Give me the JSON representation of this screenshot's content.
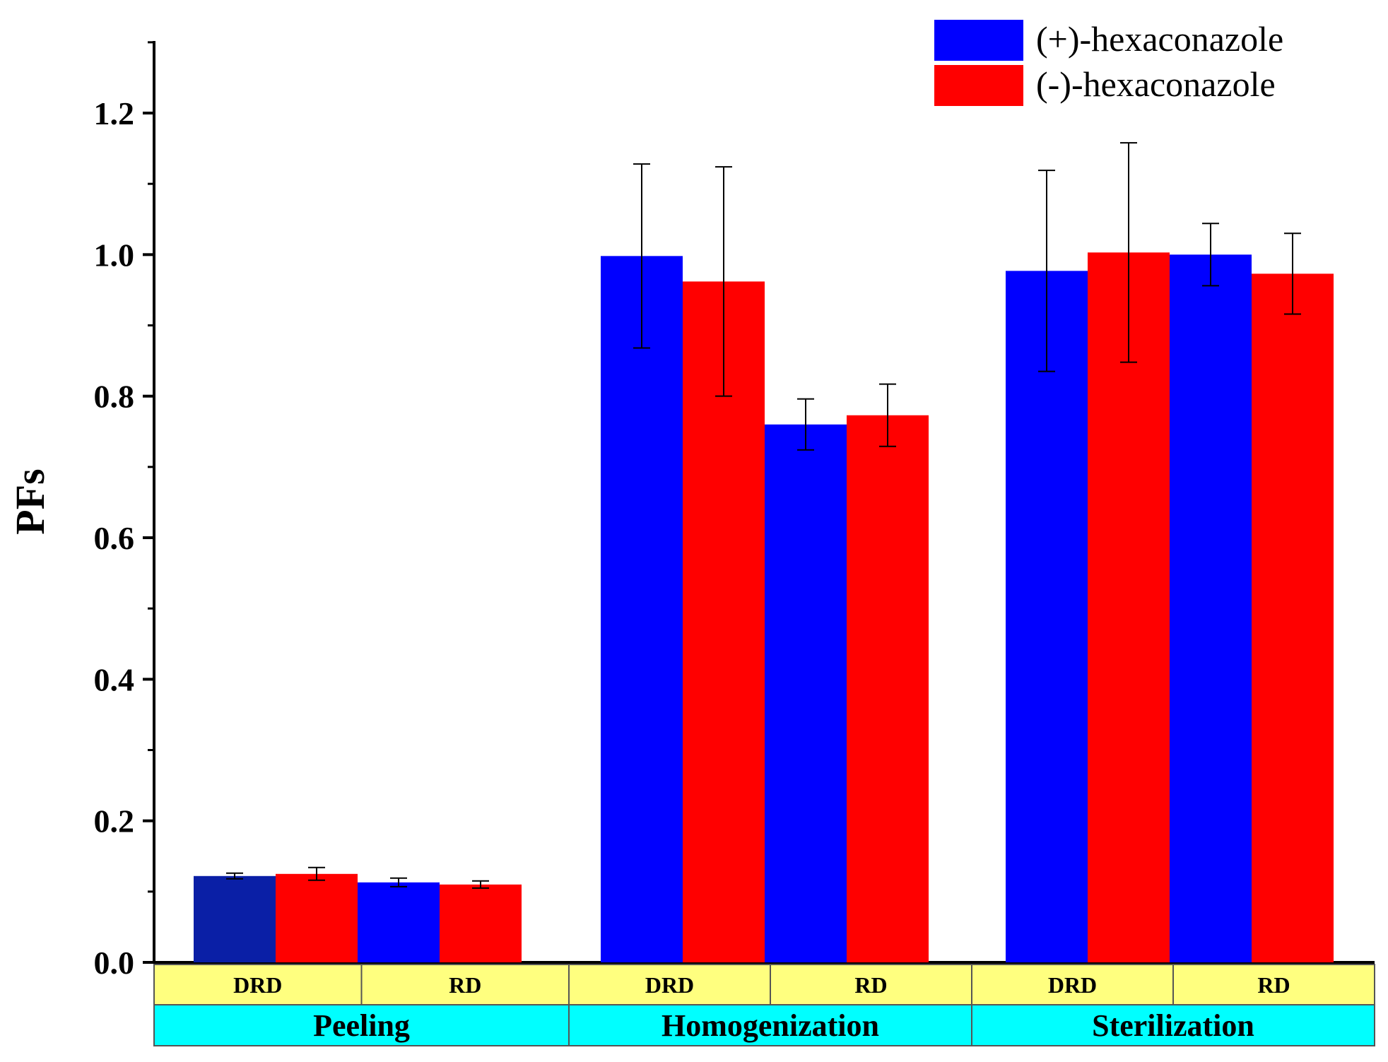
{
  "chart_data": {
    "type": "bar",
    "title": "",
    "xlabel": "",
    "ylabel": "PFs",
    "ylim": [
      0,
      1.3
    ],
    "y_ticks": [
      "0.0",
      "0.2",
      "0.4",
      "0.6",
      "0.8",
      "1.0",
      "1.2"
    ],
    "y_tick_values": [
      0,
      0.2,
      0.4,
      0.6,
      0.8,
      1.0,
      1.2
    ],
    "grid": false,
    "legend_position": "top-right",
    "groups": [
      {
        "label": "Peeling",
        "subgroups": [
          "DRD",
          "RD"
        ]
      },
      {
        "label": "Homogenization",
        "subgroups": [
          "DRD",
          "RD"
        ]
      },
      {
        "label": "Sterilization",
        "subgroups": [
          "DRD",
          "RD"
        ]
      }
    ],
    "categories": [
      "Peeling DRD",
      "Peeling RD",
      "Homogenization DRD",
      "Homogenization RD",
      "Sterilization DRD",
      "Sterilization RD"
    ],
    "series": [
      {
        "name": "(+)-hexaconazole",
        "color": "#0000ff",
        "values": [
          0.122,
          0.113,
          0.998,
          0.76,
          0.977,
          1.0
        ],
        "errors": [
          0.004,
          0.006,
          0.13,
          0.036,
          0.142,
          0.044
        ],
        "point_colors": [
          "#0a1fa6",
          "#0000ff",
          "#0000ff",
          "#0000ff",
          "#0000ff",
          "#0000ff"
        ]
      },
      {
        "name": "(-)-hexaconazole",
        "color": "#ff0000",
        "values": [
          0.125,
          0.11,
          0.962,
          0.773,
          1.003,
          0.973
        ],
        "errors": [
          0.009,
          0.005,
          0.162,
          0.044,
          0.155,
          0.057
        ]
      }
    ],
    "category_label_bg": "#ffff7f",
    "group_label_bg": "#00ffff"
  }
}
